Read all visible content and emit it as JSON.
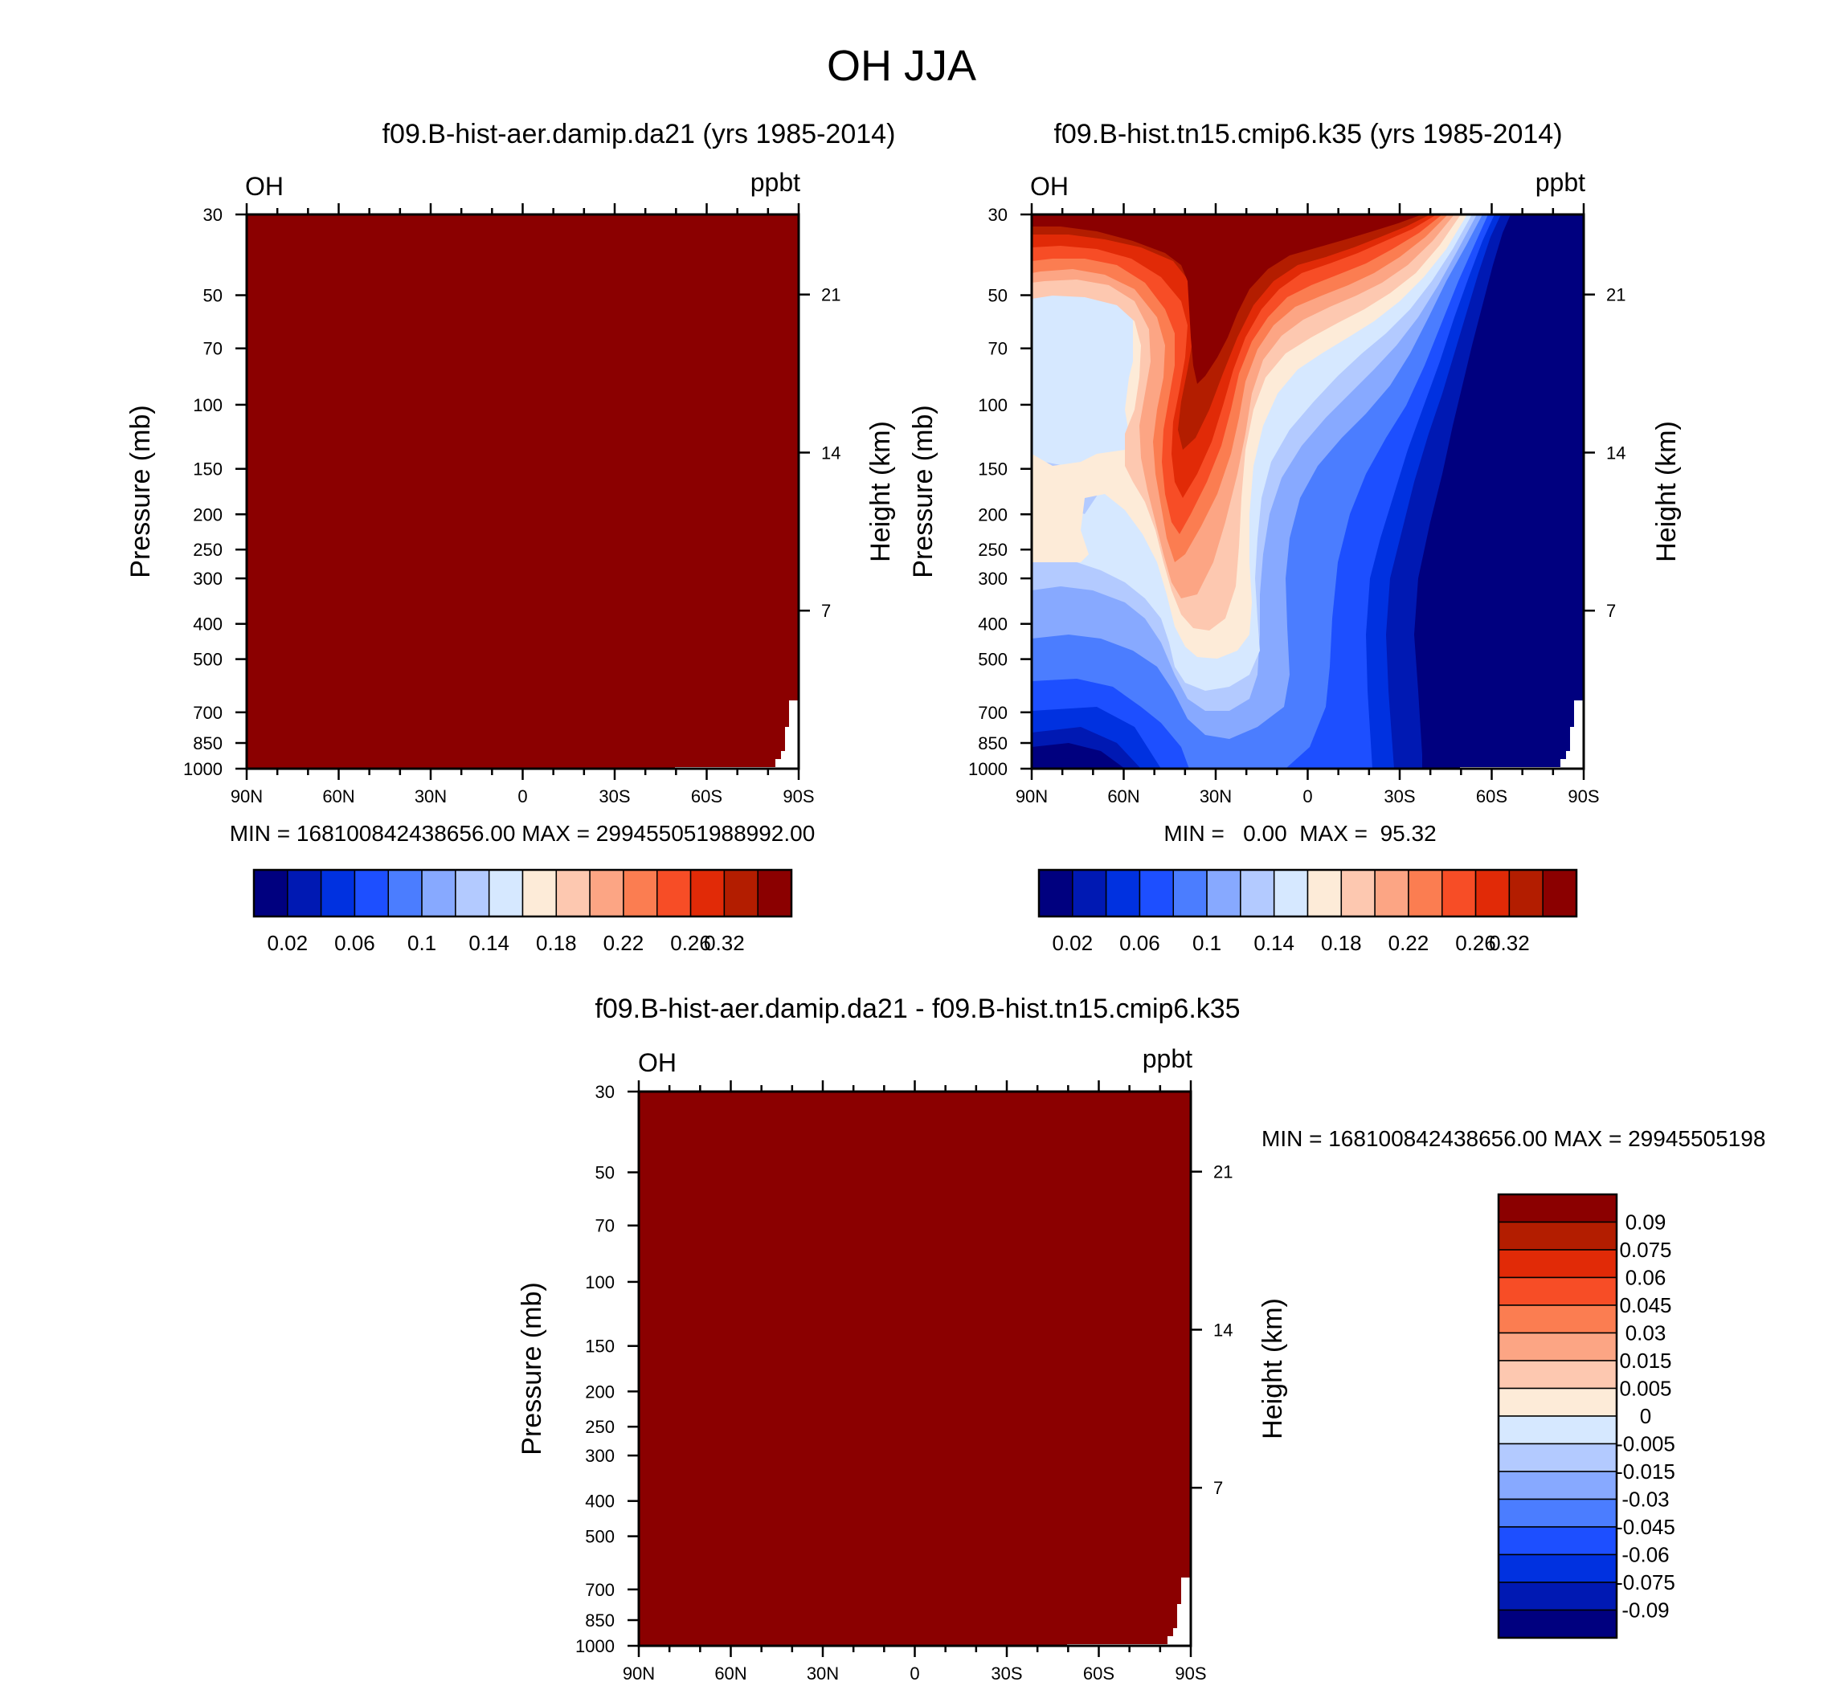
{
  "figure": {
    "title": "OH JJA"
  },
  "colors": {
    "levels12": [
      "#00007f",
      "#0019b3",
      "#0031e0",
      "#1d4fff",
      "#4b7dff",
      "#87a9ff",
      "#b3caff",
      "#d6e8ff",
      "#fdebd8",
      "#fdc8b0",
      "#fca584",
      "#fb7d51",
      "#f74d26",
      "#e12a07",
      "#b31d00",
      "#8b0000"
    ],
    "diff": [
      "#00007f",
      "#0019b3",
      "#0031e0",
      "#1d4fff",
      "#4b7dff",
      "#87a9ff",
      "#b3caff",
      "#d6e8ff",
      "#fdebd8",
      "#fdc8b0",
      "#fca584",
      "#fb7d51",
      "#f74d26",
      "#e12a07",
      "#b31d00",
      "#8b0000"
    ]
  },
  "chart_data": [
    {
      "type": "heatmap",
      "title": "f09.B-hist-aer.damip.da21 (yrs 1985-2014)",
      "variable": "OH",
      "units": "ppbt",
      "ylabel": "Pressure (mb)",
      "ylabel_right": "Height (km)",
      "x_ticks": [
        "90N",
        "60N",
        "30N",
        "0",
        "30S",
        "60S",
        "90S"
      ],
      "x_range": [
        90,
        -90
      ],
      "y_ticks": [
        "30",
        "50",
        "70",
        "100",
        "150",
        "200",
        "250",
        "300",
        "400",
        "500",
        "700",
        "850",
        "1000"
      ],
      "y_range": [
        1000,
        30
      ],
      "height_ticks": [
        "21",
        "14",
        "7"
      ],
      "stats": "MIN = 168100842438656.00  MAX = 29945505198899 2.00",
      "stats_text": "MIN = 168100842438656.00  MAX = 29945505198899 2.00",
      "field": "uniform maximum (dark red)",
      "colorbar_labels": [
        "0.02",
        "0.06",
        "0.1",
        "0.14",
        "0.18",
        "0.22",
        "0.26",
        "0.32"
      ]
    },
    {
      "type": "heatmap",
      "title": "f09.B-hist.tn15.cmip6.k35 (yrs 1985-2014)",
      "variable": "OH",
      "units": "ppbt",
      "ylabel": "Pressure (mb)",
      "ylabel_right": "Height (km)",
      "x_ticks": [
        "90N",
        "60N",
        "30N",
        "0",
        "30S",
        "60S",
        "90S"
      ],
      "x_range": [
        90,
        -90
      ],
      "y_ticks": [
        "30",
        "50",
        "70",
        "100",
        "150",
        "200",
        "250",
        "300",
        "400",
        "500",
        "700",
        "850",
        "1000"
      ],
      "y_range": [
        1000,
        30
      ],
      "height_ticks": [
        "21",
        "14",
        "7"
      ],
      "stats_text": "MIN =   0.00  MAX =  95.32",
      "min": 0.0,
      "max": 95.32,
      "colorbar_labels": [
        "0.02",
        "0.06",
        "0.1",
        "0.14",
        "0.18",
        "0.22",
        "0.26",
        "0.32"
      ]
    },
    {
      "type": "heatmap",
      "title": "f09.B-hist-aer.damip.da21 - f09.B-hist.tn15.cmip6.k35",
      "variable": "OH",
      "units": "ppbt",
      "ylabel": "Pressure (mb)",
      "ylabel_right": "Height (km)",
      "x_ticks": [
        "90N",
        "60N",
        "30N",
        "0",
        "30S",
        "60S",
        "90S"
      ],
      "x_range": [
        90,
        -90
      ],
      "y_ticks": [
        "30",
        "50",
        "70",
        "100",
        "150",
        "200",
        "250",
        "300",
        "400",
        "500",
        "700",
        "850",
        "1000"
      ],
      "y_range": [
        1000,
        30
      ],
      "height_ticks": [
        "21",
        "14",
        "7"
      ],
      "stats_text": "MIN = 168100842438656.00  MAX = 29945505198",
      "field": "uniform maximum (dark red)",
      "colorbar_labels": [
        "0.09",
        "0.075",
        "0.06",
        "0.045",
        "0.03",
        "0.015",
        "0.005",
        "0",
        "-0.005",
        "-0.015",
        "-0.03",
        "-0.045",
        "-0.06",
        "-0.075",
        "-0.09"
      ]
    }
  ]
}
